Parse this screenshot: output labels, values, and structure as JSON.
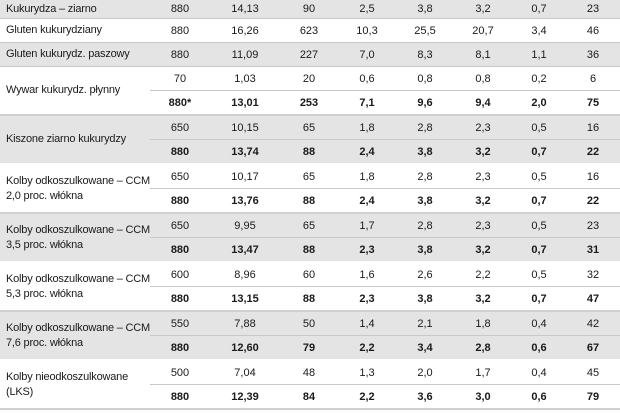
{
  "rows": [
    {
      "name": "Kukurydza – ziarno",
      "values": [
        [
          "880",
          "14,13",
          "90",
          "2,5",
          "3,8",
          "3,2",
          "0,7",
          "23"
        ]
      ]
    },
    {
      "name": "Gluten kukurydziany",
      "values": [
        [
          "880",
          "16,26",
          "623",
          "10,3",
          "25,5",
          "20,7",
          "3,4",
          "46"
        ]
      ]
    },
    {
      "name": "Gluten kukurydz. paszowy",
      "values": [
        [
          "880",
          "11,09",
          "227",
          "7,0",
          "8,3",
          "8,1",
          "1,1",
          "36"
        ]
      ]
    },
    {
      "name": "Wywar kukurydz. płynny",
      "values": [
        [
          "70",
          "1,03",
          "20",
          "0,6",
          "0,8",
          "0,8",
          "0,2",
          "6"
        ],
        [
          "880*",
          "13,01",
          "253",
          "7,1",
          "9,6",
          "9,4",
          "2,0",
          "75"
        ]
      ]
    },
    {
      "name": "Kiszone ziarno kukurydzy",
      "values": [
        [
          "650",
          "10,15",
          "65",
          "1,8",
          "2,8",
          "2,3",
          "0,5",
          "16"
        ],
        [
          "880",
          "13,74",
          "88",
          "2,4",
          "3,8",
          "3,2",
          "0,7",
          "22"
        ]
      ]
    },
    {
      "name": "Kolby odkoszulkowane – CCM 2,0 proc. włókna",
      "values": [
        [
          "650",
          "10,17",
          "65",
          "1,8",
          "2,8",
          "2,3",
          "0,5",
          "16"
        ],
        [
          "880",
          "13,76",
          "88",
          "2,4",
          "3,8",
          "3,2",
          "0,7",
          "22"
        ]
      ]
    },
    {
      "name": "Kolby odkoszulkowane – CCM 3,5 proc. włókna",
      "values": [
        [
          "650",
          "9,95",
          "65",
          "1,7",
          "2,8",
          "2,3",
          "0,5",
          "23"
        ],
        [
          "880",
          "13,47",
          "88",
          "2,3",
          "3,8",
          "3,2",
          "0,7",
          "31"
        ]
      ]
    },
    {
      "name": "Kolby odkoszulkowane – CCM 5,3 proc. włókna",
      "values": [
        [
          "600",
          "8,96",
          "60",
          "1,6",
          "2,6",
          "2,2",
          "0,5",
          "32"
        ],
        [
          "880",
          "13,15",
          "88",
          "2,3",
          "3,8",
          "3,2",
          "0,7",
          "47"
        ]
      ]
    },
    {
      "name": "Kolby odkoszulkowane – CCM 7,6 proc. włókna",
      "values": [
        [
          "550",
          "7,88",
          "50",
          "1,4",
          "2,1",
          "1,8",
          "0,4",
          "42"
        ],
        [
          "880",
          "12,60",
          "79",
          "2,2",
          "3,4",
          "2,8",
          "0,6",
          "67"
        ]
      ]
    },
    {
      "name": "Kolby nieodkoszulkowane (LKS)",
      "values": [
        [
          "500",
          "7,04",
          "48",
          "1,3",
          "2,0",
          "1,7",
          "0,4",
          "45"
        ],
        [
          "880",
          "12,39",
          "84",
          "2,2",
          "3,6",
          "3,0",
          "0,6",
          "79"
        ]
      ]
    }
  ]
}
